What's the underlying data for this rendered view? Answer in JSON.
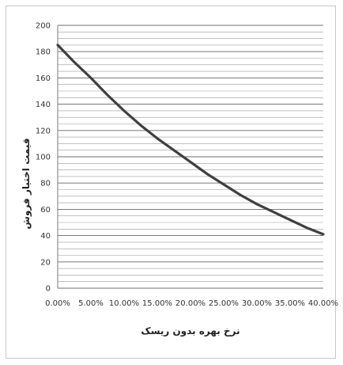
{
  "chart_data": {
    "type": "line",
    "title": "",
    "xlabel": "نرخ بهره بدون ریسک",
    "ylabel": "قیمت اختیار فروش",
    "x": [
      0.0,
      2.5,
      5.0,
      7.5,
      10.0,
      12.5,
      15.0,
      17.5,
      20.0,
      22.5,
      25.0,
      27.5,
      30.0,
      32.5,
      35.0,
      37.5,
      40.0
    ],
    "x_tick_labels": [
      "0.00%",
      "5.00%",
      "10.00%",
      "15.00%",
      "20.00%",
      "25.00%",
      "30.00%",
      "35.00%",
      "40.00%"
    ],
    "x_ticks": [
      0,
      5,
      10,
      15,
      20,
      25,
      30,
      35,
      40
    ],
    "xlim": [
      0,
      40
    ],
    "ylim": [
      0,
      200
    ],
    "y_ticks": [
      0,
      20,
      40,
      60,
      80,
      100,
      120,
      140,
      160,
      180,
      200
    ],
    "y_tick_labels": [
      "0",
      "20",
      "40",
      "60",
      "80",
      "100",
      "120",
      "140",
      "160",
      "180",
      "200"
    ],
    "series": [
      {
        "values": [
          185,
          172,
          160,
          147,
          135,
          124,
          114,
          105,
          96,
          87,
          79,
          71,
          64,
          58,
          52,
          46,
          41
        ]
      }
    ],
    "grid": true,
    "minor_grid": true,
    "legend": "none",
    "colors": {
      "line": "#404040",
      "grid": "#9a9a9a",
      "frame": "#c8c8c8"
    }
  }
}
